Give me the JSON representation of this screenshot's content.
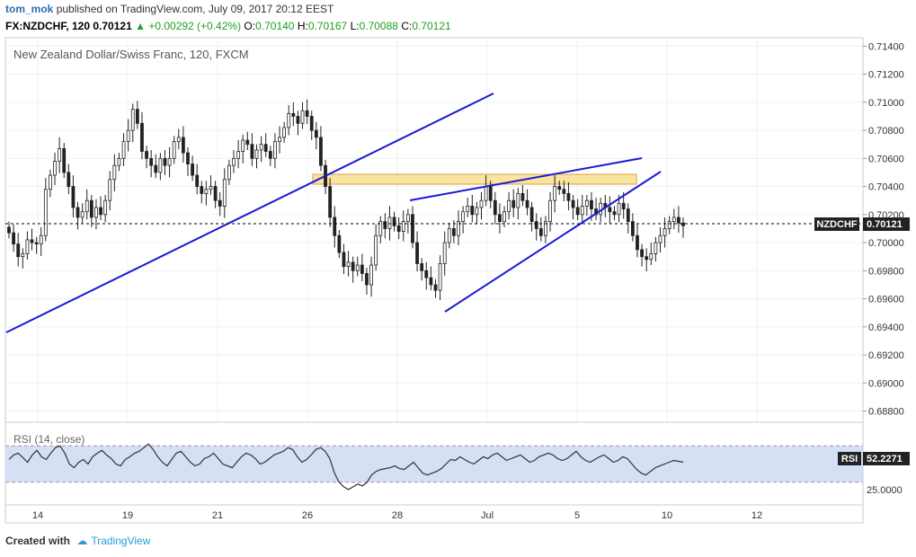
{
  "header": {
    "author": "tom_mok",
    "published_text": "published on TradingView.com, July 09, 2017 20:12 EEST",
    "symbol_interval": "FX:NZDCHF, 120",
    "last": "0.70121",
    "change": "+0.00292 (+0.42%)",
    "open_label": "O:",
    "open": "0.70140",
    "high_label": "H:",
    "high": "0.70167",
    "low_label": "L:",
    "low": "0.70088",
    "close_label": "C:",
    "close": "0.70121"
  },
  "chart_title": "New Zealand Dollar/Swiss Franc, 120, FXCM",
  "price_tag": {
    "symbol": "NZDCHF",
    "value": "0.70121"
  },
  "rsi": {
    "title": "RSI (14, close)",
    "label": "RSI",
    "value": "52.2271",
    "tick": "25.0000"
  },
  "footer": {
    "created_with": "Created with",
    "brand": "TradingView"
  },
  "colors": {
    "trendline": "#1a1ad6",
    "zone_fill": "#fbe3a0",
    "zone_border": "#d2a542",
    "rsi_band": "#d5e0f5",
    "candle": "#222222",
    "tag_bg": "#222222"
  },
  "chart_data": [
    {
      "type": "candlestick",
      "title": "New Zealand Dollar/Swiss Franc, 120, FXCM",
      "x_ticks": [
        "14",
        "19",
        "21",
        "26",
        "28",
        "Jul",
        "5",
        "10",
        "12"
      ],
      "y_ticks": [
        "0.71400",
        "0.71200",
        "0.71000",
        "0.70800",
        "0.70600",
        "0.70400",
        "0.70200",
        "0.70000",
        "0.69800",
        "0.69600",
        "0.69400",
        "0.69200",
        "0.69000",
        "0.68800"
      ],
      "ylim": [
        0.6872,
        0.7146
      ],
      "last_price": 0.70121,
      "close_series": [
        0.7007,
        0.6999,
        0.699,
        0.6992,
        0.7002,
        0.7,
        0.6999,
        0.7005,
        0.7038,
        0.7048,
        0.7058,
        0.7067,
        0.705,
        0.704,
        0.7025,
        0.7018,
        0.7022,
        0.703,
        0.7018,
        0.7025,
        0.702,
        0.703,
        0.7045,
        0.7055,
        0.706,
        0.7072,
        0.708,
        0.7095,
        0.7085,
        0.7065,
        0.706,
        0.7055,
        0.705,
        0.706,
        0.7055,
        0.706,
        0.7072,
        0.7075,
        0.7064,
        0.7056,
        0.7048,
        0.704,
        0.7035,
        0.7038,
        0.704,
        0.703,
        0.7026,
        0.7045,
        0.7055,
        0.706,
        0.7065,
        0.7073,
        0.707,
        0.706,
        0.7066,
        0.707,
        0.7065,
        0.706,
        0.7072,
        0.7075,
        0.7082,
        0.7092,
        0.709,
        0.7085,
        0.7094,
        0.709,
        0.708,
        0.7075,
        0.7055,
        0.704,
        0.7018,
        0.7005,
        0.6993,
        0.6983,
        0.6986,
        0.698,
        0.6984,
        0.6978,
        0.697,
        0.6984,
        0.7005,
        0.7015,
        0.701,
        0.7018,
        0.7012,
        0.7008,
        0.7015,
        0.702,
        0.7,
        0.6985,
        0.698,
        0.6975,
        0.697,
        0.6966,
        0.6985,
        0.7,
        0.701,
        0.7005,
        0.7015,
        0.7022,
        0.7026,
        0.702,
        0.7025,
        0.703,
        0.704,
        0.703,
        0.702,
        0.7015,
        0.7022,
        0.703,
        0.7025,
        0.7035,
        0.703,
        0.7025,
        0.7015,
        0.701,
        0.7005,
        0.7015,
        0.703,
        0.704,
        0.7038,
        0.7035,
        0.703,
        0.7025,
        0.702,
        0.7026,
        0.703,
        0.7024,
        0.702,
        0.7028,
        0.7025,
        0.7022,
        0.702,
        0.7028,
        0.7024,
        0.7015,
        0.7005,
        0.6995,
        0.699,
        0.6988,
        0.6992,
        0.7,
        0.7005,
        0.701,
        0.7015,
        0.7018,
        0.7014,
        0.7012
      ]
    },
    {
      "type": "line",
      "title": "RSI (14, close)",
      "last_value": 52.2271,
      "band": [
        30,
        70
      ],
      "values": [
        55,
        60,
        62,
        57,
        52,
        60,
        65,
        58,
        55,
        62,
        68,
        70,
        62,
        50,
        46,
        52,
        55,
        50,
        58,
        62,
        65,
        60,
        56,
        50,
        48,
        55,
        58,
        62,
        64,
        68,
        72,
        66,
        58,
        52,
        48,
        55,
        62,
        64,
        58,
        52,
        48,
        50,
        56,
        58,
        62,
        56,
        50,
        48,
        46,
        52,
        58,
        62,
        60,
        56,
        50,
        52,
        56,
        60,
        62,
        64,
        68,
        66,
        58,
        52,
        55,
        60,
        66,
        68,
        64,
        56,
        40,
        30,
        25,
        22,
        25,
        28,
        26,
        30,
        38,
        42,
        44,
        45,
        46,
        48,
        45,
        44,
        48,
        52,
        46,
        40,
        38,
        40,
        42,
        45,
        50,
        55,
        54,
        58,
        55,
        52,
        50,
        54,
        58,
        56,
        60,
        62,
        58,
        54,
        56,
        58,
        60,
        56,
        52,
        54,
        58,
        60,
        62,
        60,
        56,
        54,
        56,
        60,
        64,
        58,
        54,
        52,
        55,
        58,
        60,
        56,
        52,
        54,
        58,
        56,
        50,
        44,
        40,
        38,
        42,
        46,
        48,
        50,
        52,
        54,
        53,
        52
      ]
    }
  ]
}
